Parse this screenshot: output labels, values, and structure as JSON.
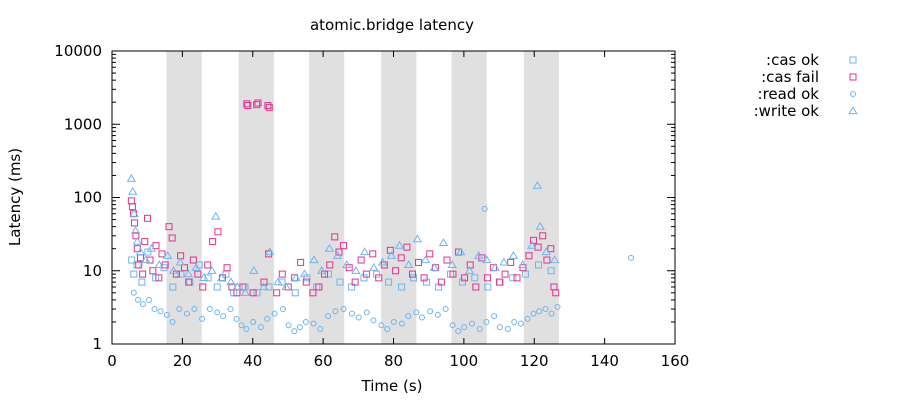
{
  "chart_data": {
    "type": "scatter",
    "title": "atomic.bridge latency",
    "xlabel": "Time (s)",
    "ylabel": "Latency (ms)",
    "xlim": [
      0,
      160
    ],
    "ylim": [
      1,
      10000
    ],
    "yscale": "log",
    "xticks": [
      "0",
      "20",
      "40",
      "60",
      "80",
      "100",
      "120",
      "140",
      "160"
    ],
    "yticks": [
      "1",
      "10",
      "100",
      "1000",
      "10000"
    ],
    "grid": false,
    "legend_position": "outside-right",
    "shaded_intervals": [
      [
        15.5,
        25.5
      ],
      [
        36,
        46
      ],
      [
        56,
        66
      ],
      [
        76.5,
        86.5
      ],
      [
        96.5,
        106.5
      ],
      [
        117,
        127
      ]
    ],
    "shade_color": "#e0e0e0",
    "series": [
      {
        "name": ":cas ok",
        "marker": "square",
        "color": "#6fb4f0",
        "points": [
          [
            5.6,
            14
          ],
          [
            6.2,
            9
          ],
          [
            7.1,
            12
          ],
          [
            8.5,
            7
          ],
          [
            10.2,
            18
          ],
          [
            12.4,
            8
          ],
          [
            14.8,
            11
          ],
          [
            17.3,
            6
          ],
          [
            19.6,
            9
          ],
          [
            22.1,
            7
          ],
          [
            24.8,
            12
          ],
          [
            27.3,
            8
          ],
          [
            29.9,
            6
          ],
          [
            32.4,
            9
          ],
          [
            34.6,
            5
          ],
          [
            37.8,
            6
          ],
          [
            41.2,
            5
          ],
          [
            44.6,
            6
          ],
          [
            48.3,
            7
          ],
          [
            52.1,
            5
          ],
          [
            55.4,
            8
          ],
          [
            58.2,
            6
          ],
          [
            61.5,
            9
          ],
          [
            64.8,
            7
          ],
          [
            68.1,
            6
          ],
          [
            71.6,
            8
          ],
          [
            75.2,
            9
          ],
          [
            78.6,
            7
          ],
          [
            82.3,
            6
          ],
          [
            85.7,
            8
          ],
          [
            89.4,
            7
          ],
          [
            92.8,
            6
          ],
          [
            96.2,
            9
          ],
          [
            99.6,
            7
          ],
          [
            103.1,
            8
          ],
          [
            106.8,
            6
          ],
          [
            110.3,
            7
          ],
          [
            113.9,
            8
          ],
          [
            117.5,
            9
          ],
          [
            121.2,
            12
          ],
          [
            124.8,
            10
          ]
        ]
      },
      {
        "name": ":cas fail",
        "marker": "square",
        "color": "#e0338f",
        "points": [
          [
            5.5,
            90
          ],
          [
            5.8,
            75
          ],
          [
            6.1,
            60
          ],
          [
            6.4,
            45
          ],
          [
            6.8,
            30
          ],
          [
            7.2,
            20
          ],
          [
            7.6,
            12
          ],
          [
            8.1,
            15
          ],
          [
            8.7,
            9
          ],
          [
            9.3,
            25
          ],
          [
            10.1,
            52
          ],
          [
            10.8,
            14
          ],
          [
            11.6,
            10
          ],
          [
            12.5,
            22
          ],
          [
            13.3,
            8
          ],
          [
            14.2,
            17
          ],
          [
            15.1,
            12
          ],
          [
            16.2,
            40
          ],
          [
            17.1,
            28
          ],
          [
            18.3,
            9
          ],
          [
            19.5,
            16
          ],
          [
            20.6,
            11
          ],
          [
            21.8,
            7
          ],
          [
            23.1,
            14
          ],
          [
            24.4,
            9
          ],
          [
            25.8,
            6
          ],
          [
            27.2,
            12
          ],
          [
            28.6,
            25
          ],
          [
            30.1,
            34
          ],
          [
            31.4,
            8
          ],
          [
            32.7,
            11
          ],
          [
            34.1,
            6
          ],
          [
            35.5,
            5
          ],
          [
            38.3,
            1900
          ],
          [
            38.6,
            1800
          ],
          [
            41.1,
            1850
          ],
          [
            41.5,
            1950
          ],
          [
            44.3,
            1800
          ],
          [
            44.7,
            1700
          ],
          [
            44.5,
            17
          ],
          [
            37.2,
            6
          ],
          [
            40.1,
            5
          ],
          [
            43.2,
            7
          ],
          [
            46.8,
            5
          ],
          [
            48.4,
            9
          ],
          [
            50.1,
            6
          ],
          [
            51.9,
            8
          ],
          [
            53.6,
            13
          ],
          [
            55.2,
            7
          ],
          [
            57.1,
            5
          ],
          [
            58.8,
            6
          ],
          [
            60.4,
            9
          ],
          [
            61.9,
            12
          ],
          [
            63.3,
            29
          ],
          [
            64.5,
            18
          ],
          [
            65.8,
            22
          ],
          [
            67.4,
            11
          ],
          [
            69.1,
            7
          ],
          [
            70.8,
            14
          ],
          [
            72.3,
            9
          ],
          [
            74.1,
            17
          ],
          [
            75.8,
            8
          ],
          [
            77.4,
            12
          ],
          [
            79.1,
            19
          ],
          [
            80.6,
            10
          ],
          [
            82.2,
            15
          ],
          [
            83.8,
            21
          ],
          [
            85.4,
            9
          ],
          [
            87.1,
            13
          ],
          [
            88.7,
            8
          ],
          [
            90.3,
            17
          ],
          [
            91.9,
            11
          ],
          [
            93.6,
            7
          ],
          [
            95.2,
            14
          ],
          [
            96.9,
            9
          ],
          [
            98.5,
            18
          ],
          [
            100.2,
            8
          ],
          [
            101.8,
            12
          ],
          [
            103.4,
            6
          ],
          [
            105.1,
            15
          ],
          [
            106.7,
            8
          ],
          [
            108.4,
            11
          ],
          [
            110.1,
            7
          ],
          [
            111.7,
            9
          ],
          [
            113.3,
            13
          ],
          [
            115.1,
            8
          ],
          [
            116.8,
            11
          ],
          [
            118.5,
            16
          ],
          [
            119.8,
            26
          ],
          [
            121.1,
            21
          ],
          [
            122.4,
            30
          ],
          [
            123.6,
            14
          ],
          [
            124.7,
            20
          ],
          [
            125.6,
            6
          ],
          [
            126.1,
            5
          ]
        ]
      },
      {
        "name": ":read ok",
        "marker": "circle",
        "color": "#6fb4f0",
        "points": [
          [
            6.2,
            5
          ],
          [
            7.4,
            4
          ],
          [
            8.8,
            3.5
          ],
          [
            10.5,
            4
          ],
          [
            12.1,
            3
          ],
          [
            13.8,
            2.8
          ],
          [
            15.6,
            2.5
          ],
          [
            17.2,
            2
          ],
          [
            19.1,
            3
          ],
          [
            21.3,
            2.6
          ],
          [
            23.4,
            3
          ],
          [
            25.6,
            2.2
          ],
          [
            27.8,
            3
          ],
          [
            29.9,
            2.7
          ],
          [
            31.6,
            2.4
          ],
          [
            33.7,
            3
          ],
          [
            35.4,
            2.2
          ],
          [
            36.8,
            1.8
          ],
          [
            38.2,
            1.6
          ],
          [
            40.1,
            2
          ],
          [
            42.3,
            1.7
          ],
          [
            44.1,
            2.2
          ],
          [
            46.2,
            2.6
          ],
          [
            48.6,
            3
          ],
          [
            50.2,
            1.8
          ],
          [
            51.8,
            1.5
          ],
          [
            53.4,
            1.7
          ],
          [
            55.1,
            2
          ],
          [
            57.3,
            1.9
          ],
          [
            59.2,
            1.6
          ],
          [
            61.4,
            2.4
          ],
          [
            63.5,
            2.8
          ],
          [
            65.8,
            3
          ],
          [
            68.2,
            2.6
          ],
          [
            70.1,
            2.3
          ],
          [
            72.4,
            2.7
          ],
          [
            74.3,
            2.1
          ],
          [
            76.6,
            1.8
          ],
          [
            78.2,
            1.6
          ],
          [
            80.1,
            2
          ],
          [
            82.4,
            1.9
          ],
          [
            84.2,
            2.4
          ],
          [
            86.5,
            2.7
          ],
          [
            88.1,
            2.3
          ],
          [
            90.4,
            2.8
          ],
          [
            92.6,
            2.5
          ],
          [
            94.8,
            3
          ],
          [
            96.8,
            1.8
          ],
          [
            98.4,
            1.5
          ],
          [
            100.1,
            1.7
          ],
          [
            102.3,
            1.9
          ],
          [
            104.5,
            1.6
          ],
          [
            105.9,
            70
          ],
          [
            106.4,
            2
          ],
          [
            108.6,
            2.4
          ],
          [
            110.2,
            1.7
          ],
          [
            112.5,
            1.6
          ],
          [
            114.3,
            2
          ],
          [
            116.2,
            1.9
          ],
          [
            118.1,
            2.2
          ],
          [
            119.8,
            2.6
          ],
          [
            121.4,
            2.8
          ],
          [
            123.2,
            3
          ],
          [
            124.9,
            2.6
          ],
          [
            126.6,
            3.2
          ],
          [
            147.5,
            15
          ]
        ]
      },
      {
        "name": ":write ok",
        "marker": "triangle",
        "color": "#6fb4f0",
        "points": [
          [
            5.5,
            180
          ],
          [
            5.9,
            120
          ],
          [
            6.3,
            60
          ],
          [
            6.7,
            35
          ],
          [
            7.2,
            25
          ],
          [
            8.1,
            18
          ],
          [
            9.6,
            14
          ],
          [
            11.2,
            20
          ],
          [
            13.4,
            12
          ],
          [
            15.8,
            16
          ],
          [
            17.5,
            10
          ],
          [
            19.4,
            13
          ],
          [
            21.7,
            9
          ],
          [
            23.9,
            11
          ],
          [
            26.1,
            8
          ],
          [
            28.4,
            10
          ],
          [
            29.5,
            55
          ],
          [
            31.2,
            8
          ],
          [
            33.8,
            7
          ],
          [
            35.6,
            6
          ],
          [
            37.9,
            5
          ],
          [
            40.3,
            10
          ],
          [
            43.1,
            6
          ],
          [
            44.8,
            18
          ],
          [
            47.2,
            7
          ],
          [
            49.5,
            6
          ],
          [
            52.3,
            8
          ],
          [
            54.7,
            9
          ],
          [
            57.4,
            14
          ],
          [
            59.6,
            10
          ],
          [
            61.8,
            20
          ],
          [
            64.1,
            16
          ],
          [
            66.7,
            12
          ],
          [
            69.3,
            10
          ],
          [
            71.8,
            18
          ],
          [
            74.4,
            11
          ],
          [
            76.9,
            13
          ],
          [
            79.4,
            16
          ],
          [
            81.7,
            22
          ],
          [
            84.3,
            12
          ],
          [
            86.8,
            27
          ],
          [
            89.1,
            14
          ],
          [
            91.6,
            11
          ],
          [
            94.2,
            24
          ],
          [
            96.7,
            12
          ],
          [
            99.1,
            18
          ],
          [
            101.6,
            10
          ],
          [
            104.2,
            16
          ],
          [
            106.5,
            14
          ],
          [
            108.9,
            11
          ],
          [
            111.4,
            13
          ],
          [
            114.1,
            16
          ],
          [
            116.7,
            12
          ],
          [
            119.3,
            22
          ],
          [
            120.9,
            145
          ],
          [
            121.7,
            40
          ],
          [
            123.4,
            18
          ],
          [
            125.8,
            14
          ]
        ]
      }
    ]
  }
}
